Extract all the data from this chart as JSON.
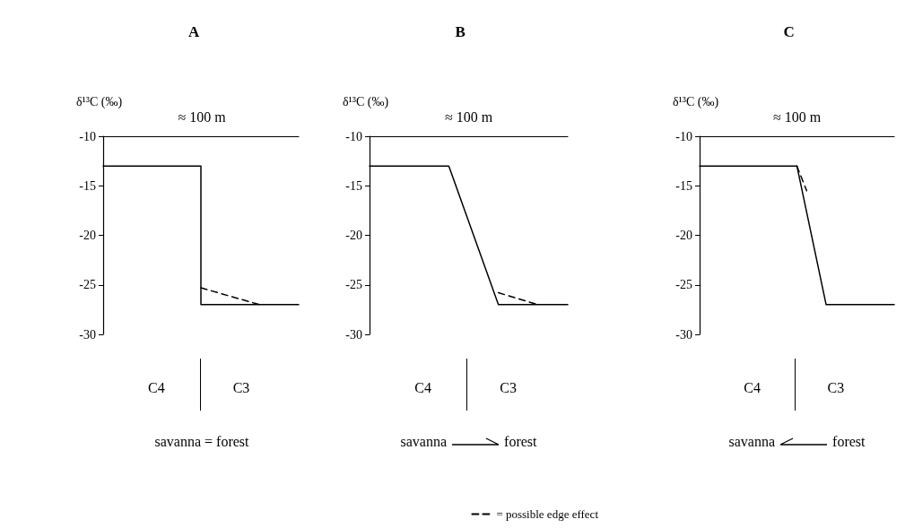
{
  "chart_data": [
    {
      "type": "line",
      "title": "A",
      "ylabel": "δ¹³C (‰)",
      "categories": [
        null,
        null,
        null,
        null,
        null,
        null,
        null,
        null,
        null,
        null,
        null,
        null,
        null,
        null,
        null,
        null,
        null,
        null,
        null,
        null,
        null
      ],
      "ylim": [
        -30,
        -10
      ],
      "yticks": [
        -30,
        -25,
        -20,
        -15,
        -10
      ],
      "series": [
        {
          "type": "step",
          "color": "#000000",
          "line_style": "solid",
          "values": [
            -13,
            -13,
            -13,
            -13,
            -13,
            -13,
            -13,
            -13,
            -13,
            -13,
            -13,
            -27,
            -27,
            -27,
            -27,
            -27,
            -27,
            -27,
            -27,
            -27,
            -27
          ]
        },
        {
          "color": "#000000",
          "line_style": "dashed",
          "values": [
            null,
            null,
            null,
            null,
            null,
            null,
            null,
            null,
            null,
            null,
            -25.3,
            null,
            null,
            null,
            null,
            null,
            -27,
            null,
            null,
            null,
            null
          ]
        }
      ],
      "annotations": [
        "≈ 100 m",
        "C4",
        "C3",
        "savanna = forest"
      ]
    },
    {
      "type": "line",
      "title": "B",
      "ylabel": "δ¹³C (‰)",
      "categories": [
        null,
        null,
        null,
        null,
        null,
        null,
        null,
        null,
        null,
        null,
        null,
        null,
        null,
        null,
        null,
        null,
        null,
        null,
        null,
        null,
        null
      ],
      "ylim": [
        -30,
        -10
      ],
      "yticks": [
        -30,
        -25,
        -20,
        -15,
        -10
      ],
      "legend": "bottom",
      "series": [
        {
          "color": "#000000",
          "line_style": "solid",
          "values": [
            -13,
            -13,
            -13,
            -13,
            -13,
            -13,
            -13,
            -13,
            -13,
            null,
            null,
            null,
            null,
            -27,
            -27,
            -27,
            -27,
            -27,
            -27,
            -27,
            -27
          ]
        },
        {
          "name": "= possible edge effect",
          "color": "#000000",
          "line_style": "dashed",
          "values": [
            null,
            null,
            null,
            null,
            null,
            null,
            null,
            null,
            null,
            null,
            null,
            null,
            null,
            -25.8,
            null,
            null,
            null,
            -27,
            null,
            null,
            null
          ]
        }
      ],
      "annotations": [
        "≈ 100 m",
        "C4",
        "C3",
        "savanna",
        "forest"
      ]
    },
    {
      "type": "line",
      "title": "C",
      "ylabel": "δ¹³C (‰)",
      "categories": [
        null,
        null,
        null,
        null,
        null,
        null,
        null,
        null,
        null,
        null,
        null,
        null,
        null,
        null,
        null,
        null,
        null,
        null,
        null,
        null,
        null
      ],
      "ylim": [
        -30,
        -10
      ],
      "yticks": [
        -30,
        -25,
        -20,
        -15,
        -10
      ],
      "series": [
        {
          "color": "#000000",
          "line_style": "solid",
          "values": [
            -13,
            -13,
            -13,
            -13,
            -13,
            -13,
            -13,
            -13,
            -13,
            -13,
            -13,
            null,
            null,
            -27,
            -27,
            -27,
            -27,
            -27,
            -27,
            -27,
            -27
          ]
        },
        {
          "color": "#000000",
          "line_style": "dashed",
          "values": [
            null,
            null,
            null,
            null,
            null,
            null,
            null,
            null,
            null,
            null,
            -13,
            -15.5,
            null,
            null,
            null,
            null,
            null,
            null,
            null,
            null,
            null
          ]
        }
      ],
      "annotations": [
        "≈ 100 m",
        "C4",
        "C3",
        "savanna",
        "forest"
      ]
    }
  ]
}
